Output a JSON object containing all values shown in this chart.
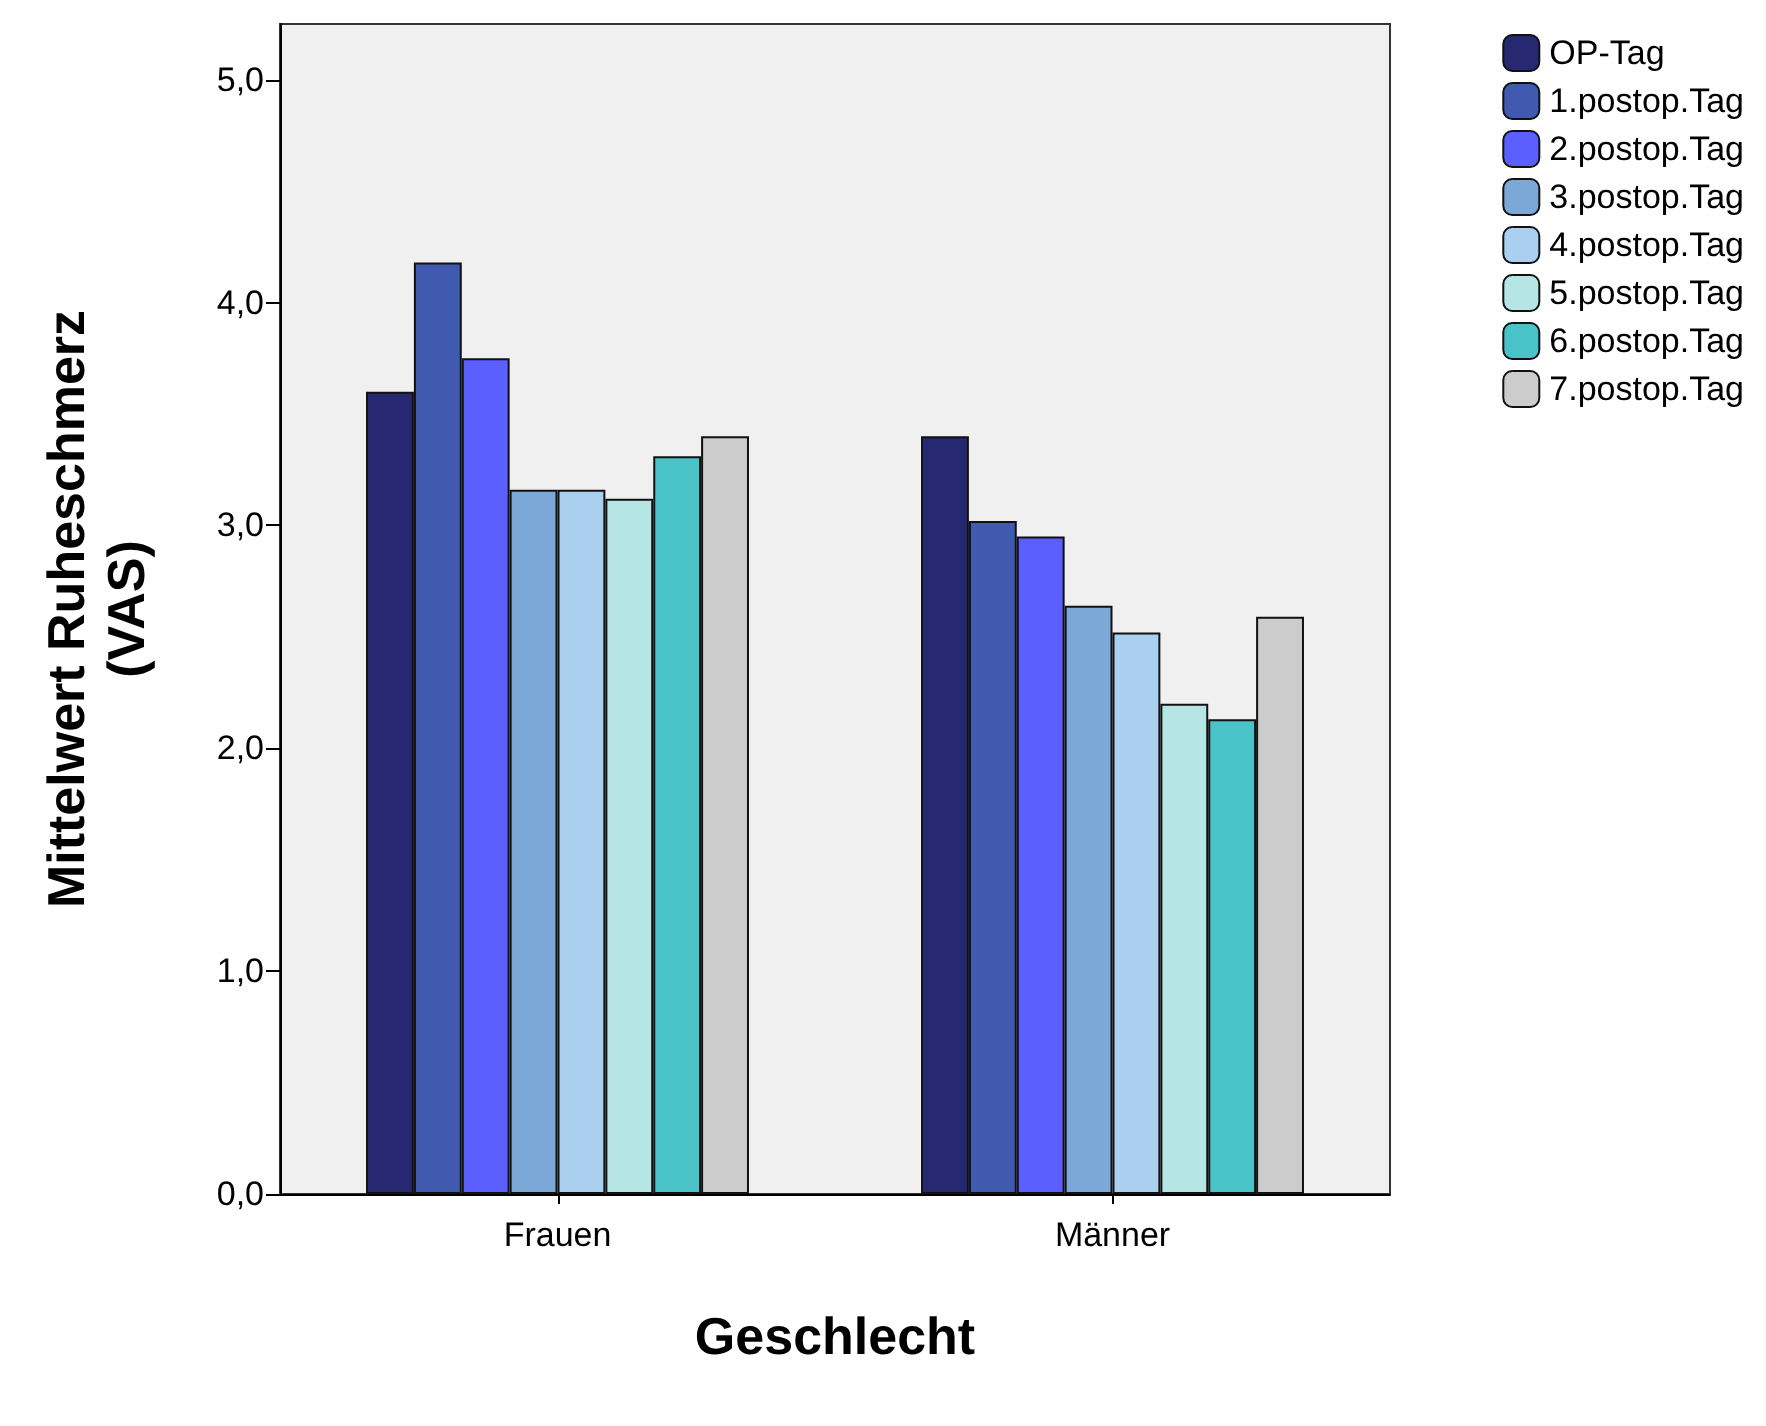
{
  "chart_data": {
    "type": "bar",
    "xlabel": "Geschlecht",
    "ylabel": "Mittelwert Ruheschmerz\n(VAS)",
    "categories": [
      "Frauen",
      "Männer"
    ],
    "series": [
      {
        "name": "OP-Tag",
        "color": "#262872",
        "values": [
          3.6,
          3.4
        ]
      },
      {
        "name": "1.postop.Tag",
        "color": "#3f5aae",
        "values": [
          4.18,
          3.02
        ]
      },
      {
        "name": "2.postop.Tag",
        "color": "#5b5ffd",
        "values": [
          3.75,
          2.95
        ]
      },
      {
        "name": "3.postop.Tag",
        "color": "#7ba8d6",
        "values": [
          3.16,
          2.64
        ]
      },
      {
        "name": "4.postop.Tag",
        "color": "#abcfee",
        "values": [
          3.16,
          2.52
        ]
      },
      {
        "name": "5.postop.Tag",
        "color": "#b6e5e6",
        "values": [
          3.12,
          2.2
        ]
      },
      {
        "name": "6.postop.Tag",
        "color": "#49c3c8",
        "values": [
          3.31,
          2.13
        ]
      },
      {
        "name": "7.postop.Tag",
        "color": "#cccccc",
        "values": [
          3.4,
          2.59
        ]
      }
    ],
    "ylim": [
      0,
      5.25
    ],
    "yticks": [
      {
        "value": 0,
        "label": "0,0"
      },
      {
        "value": 1,
        "label": "1,0"
      },
      {
        "value": 2,
        "label": "2,0"
      },
      {
        "value": 3,
        "label": "3,0"
      },
      {
        "value": 4,
        "label": "4,0"
      },
      {
        "value": 5,
        "label": "5,0"
      }
    ],
    "grid": false,
    "legend": "right"
  }
}
